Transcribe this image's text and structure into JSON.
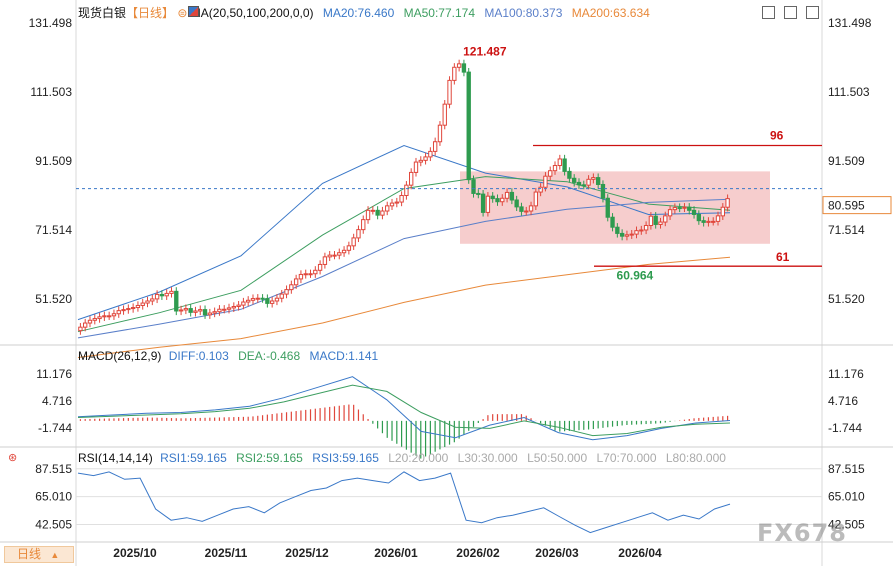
{
  "header": {
    "symbol": "现货白银",
    "period_tag": "【日线】",
    "ma_label": "MA(20,50,100,200,0,0)",
    "ma20": "MA20:76.460",
    "ma50": "MA50:77.174",
    "ma100": "MA100:80.373",
    "ma200": "MA200:63.634"
  },
  "macd_header": {
    "label": "MACD(26,12,9)",
    "diff": "DIFF:0.103",
    "dea": "DEA:-0.468",
    "macd": "MACD:1.141"
  },
  "rsi_header": {
    "label": "RSI(14,14,14)",
    "rsi1": "RSI1:59.165",
    "rsi2": "RSI2:59.165",
    "rsi3": "RSI3:59.165",
    "l20": "L20:20.000",
    "l30": "L30:30.000",
    "l50": "L50:50.000",
    "l70": "L70:70.000",
    "l80": "L80:80.000"
  },
  "footer": {
    "period_button": "日线",
    "watermark": "FX678"
  },
  "colors": {
    "up": "#e0463b",
    "down": "#2e9b4f",
    "ma20": "#3a78c8",
    "ma50": "#3d9e60",
    "ma100": "#5a7fc9",
    "ma200": "#e8893a",
    "zone": "#f5c4c4",
    "annotation": "#cc1111",
    "last_price_box": "#e8893a"
  },
  "chart_data": [
    {
      "type": "candlestick",
      "panel": "price",
      "y_ticks": [
        "131.498",
        "111.503",
        "91.509",
        "71.514",
        "51.520"
      ],
      "ylim": [
        39,
        133
      ],
      "x_tick_labels": [
        "2025/10",
        "2025/11",
        "2025/12",
        "2026/01",
        "2026/02",
        "2026/03",
        "2026/04"
      ],
      "close_values": [
        43.3,
        44.5,
        45.3,
        45.8,
        46.3,
        46.6,
        46.6,
        47.2,
        48.1,
        48.4,
        48.7,
        49.0,
        49.6,
        50.3,
        50.9,
        51.5,
        52.8,
        52.4,
        53.1,
        53.7,
        48.0,
        48.3,
        48.7,
        47.6,
        48.0,
        48.4,
        46.9,
        47.4,
        47.8,
        48.5,
        48.5,
        48.9,
        49.3,
        49.7,
        50.6,
        51.1,
        51.6,
        51.7,
        51.6,
        50.2,
        50.9,
        51.7,
        52.9,
        54.2,
        55.6,
        57.3,
        58.6,
        58.8,
        58.8,
        59.8,
        61.5,
        63.7,
        64.2,
        64.2,
        64.9,
        65.6,
        66.9,
        69.2,
        71.6,
        74.5,
        77.2,
        77.2,
        75.8,
        77.0,
        78.5,
        79.3,
        79.6,
        81.5,
        84.5,
        88.2,
        91.2,
        91.7,
        92.7,
        94.3,
        97.1,
        101.9,
        108.0,
        114.9,
        118.7,
        119.7,
        117.3,
        86.1,
        82.1,
        81.9,
        76.6,
        81.3,
        80.6,
        79.7,
        80.7,
        82.4,
        80.2,
        78.2,
        76.9,
        77.0,
        78.5,
        82.5,
        83.9,
        87.1,
        88.7,
        90.2,
        92.1,
        88.5,
        86.5,
        85.3,
        84.6,
        84.5,
        86.2,
        86.7,
        84.7,
        80.7,
        75.2,
        72.3,
        70.5,
        69.7,
        70.1,
        70.3,
        71.3,
        71.5,
        72.8,
        75.5,
        73.1,
        73.8,
        75.6,
        77.4,
        78.0,
        77.9,
        78.1,
        77.2,
        76.0,
        74.2,
        73.7,
        74.0,
        74.0,
        75.6,
        78.1,
        80.6
      ],
      "high": 121.487,
      "low": 60.964,
      "last_price": "80.595",
      "annotations": [
        "121.487",
        "60.964",
        "96",
        "61"
      ],
      "series": [
        {
          "name": "MA20",
          "values": [
            45.5,
            53.5,
            64.0,
            85.0,
            96.0,
            88.0,
            84.0,
            76.0,
            76.5
          ]
        },
        {
          "name": "MA50",
          "values": [
            42.0,
            47.5,
            54.0,
            70.0,
            83.5,
            87.0,
            85.5,
            79.0,
            77.2
          ]
        },
        {
          "name": "MA100",
          "values": [
            40.2,
            44.2,
            48.5,
            58.0,
            69.0,
            74.0,
            77.5,
            79.5,
            80.4
          ]
        },
        {
          "name": "MA200",
          "values": [
            34.5,
            37.5,
            40.0,
            44.5,
            50.5,
            55.5,
            58.5,
            61.5,
            63.6
          ]
        }
      ]
    },
    {
      "type": "bar",
      "panel": "macd",
      "y_ticks": [
        "11.176",
        "4.716",
        "-1.744"
      ],
      "ylim": [
        -5.5,
        14
      ],
      "series": [
        {
          "name": "DIFF",
          "value": 0.103
        },
        {
          "name": "DEA",
          "value": -0.468
        },
        {
          "name": "MACD",
          "value": 1.141
        }
      ],
      "diff_path": [
        1.0,
        1.4,
        1.8,
        2.0,
        2.6,
        3.5,
        5.5,
        8.0,
        10.5,
        5.0,
        -2.5,
        -4.0,
        -1.0,
        0.8,
        -2.8,
        -4.5,
        -3.5,
        -1.8,
        -0.5,
        0.1
      ],
      "dea_path": [
        0.8,
        1.1,
        1.4,
        1.7,
        2.2,
        3.0,
        4.5,
        6.5,
        8.5,
        7.0,
        2.0,
        -1.5,
        -1.8,
        0.0,
        -1.5,
        -3.5,
        -3.0,
        -1.5,
        -0.8,
        -0.5
      ]
    },
    {
      "type": "line",
      "panel": "rsi",
      "y_ticks": [
        "87.515",
        "65.010",
        "42.505"
      ],
      "ylim": [
        30,
        93
      ],
      "series": [
        {
          "name": "RSI1",
          "value": 59.165
        },
        {
          "name": "RSI2",
          "value": 59.165
        },
        {
          "name": "RSI3",
          "value": 59.165
        }
      ],
      "rsi_path": [
        84,
        82,
        85,
        79,
        80,
        55,
        46,
        48,
        45,
        50,
        55,
        57,
        52,
        60,
        65,
        70,
        72,
        78,
        80,
        78,
        76,
        85,
        78,
        80,
        84,
        46,
        44,
        48,
        50,
        53,
        56,
        49,
        42,
        36,
        40,
        44,
        48,
        52,
        46,
        50,
        47,
        55,
        59
      ]
    }
  ]
}
